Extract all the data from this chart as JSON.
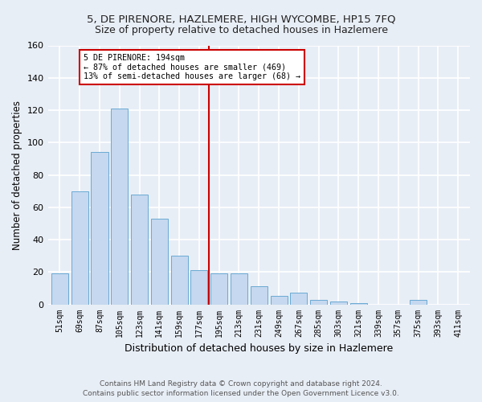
{
  "title": "5, DE PIRENORE, HAZLEMERE, HIGH WYCOMBE, HP15 7FQ",
  "subtitle": "Size of property relative to detached houses in Hazlemere",
  "xlabel": "Distribution of detached houses by size in Hazlemere",
  "ylabel": "Number of detached properties",
  "categories": [
    "51sqm",
    "69sqm",
    "87sqm",
    "105sqm",
    "123sqm",
    "141sqm",
    "159sqm",
    "177sqm",
    "195sqm",
    "213sqm",
    "231sqm",
    "249sqm",
    "267sqm",
    "285sqm",
    "303sqm",
    "321sqm",
    "339sqm",
    "357sqm",
    "375sqm",
    "393sqm",
    "411sqm"
  ],
  "values": [
    19,
    70,
    94,
    121,
    68,
    53,
    30,
    21,
    19,
    19,
    11,
    5,
    7,
    3,
    2,
    1,
    0,
    0,
    3,
    0,
    0
  ],
  "bar_color": "#c5d8ef",
  "bar_edge_color": "#6aaad4",
  "background_color": "#e8eef6",
  "grid_color": "#ffffff",
  "annotation_line_index": 8,
  "annotation_text_line1": "5 DE PIRENORE: 194sqm",
  "annotation_text_line2": "← 87% of detached houses are smaller (469)",
  "annotation_text_line3": "13% of semi-detached houses are larger (68) →",
  "annotation_box_color": "#ffffff",
  "annotation_box_edge_color": "#cc0000",
  "vline_color": "#cc0000",
  "ylim": [
    0,
    160
  ],
  "yticks": [
    0,
    20,
    40,
    60,
    80,
    100,
    120,
    140,
    160
  ],
  "footer1": "Contains HM Land Registry data © Crown copyright and database right 2024.",
  "footer2": "Contains public sector information licensed under the Open Government Licence v3.0."
}
